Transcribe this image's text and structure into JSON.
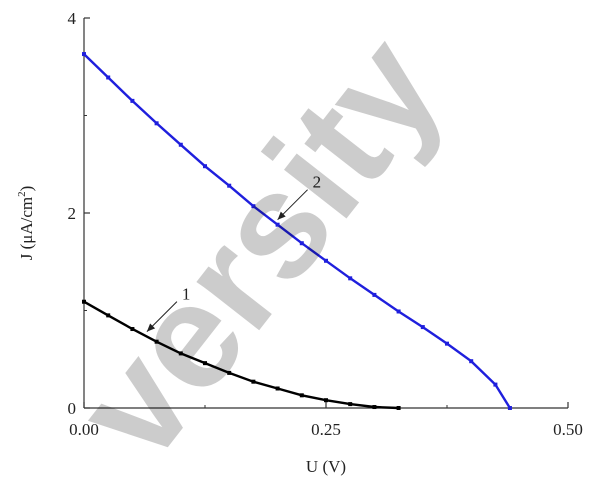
{
  "chart_data": {
    "type": "line",
    "xlabel": "U (V)",
    "ylabel": "J (μA/cm",
    "ylabel_sup": "2",
    "ylabel_close": ")",
    "xlim": [
      0,
      0.5
    ],
    "ylim": [
      0,
      4
    ],
    "x_ticks": [
      0,
      0.25,
      0.5
    ],
    "x_tick_labels": [
      "0.00",
      "0.25",
      "0.50"
    ],
    "y_ticks": [
      0,
      2,
      4
    ],
    "y_tick_labels": [
      "0",
      "2",
      "4"
    ],
    "grid": false,
    "series": [
      {
        "name": "1",
        "color": "#000000",
        "x": [
          0,
          0.025,
          0.05,
          0.075,
          0.1,
          0.125,
          0.15,
          0.175,
          0.2,
          0.225,
          0.25,
          0.275,
          0.3,
          0.325
        ],
        "y": [
          1.09,
          0.95,
          0.81,
          0.68,
          0.56,
          0.46,
          0.36,
          0.27,
          0.2,
          0.13,
          0.08,
          0.04,
          0.01,
          0
        ]
      },
      {
        "name": "2",
        "color": "#1f1fdd",
        "x": [
          0,
          0.025,
          0.05,
          0.075,
          0.1,
          0.125,
          0.15,
          0.175,
          0.2,
          0.225,
          0.25,
          0.275,
          0.3,
          0.325,
          0.35,
          0.375,
          0.4,
          0.425,
          0.44
        ],
        "y": [
          3.63,
          3.39,
          3.15,
          2.92,
          2.7,
          2.48,
          2.28,
          2.07,
          1.88,
          1.69,
          1.51,
          1.33,
          1.16,
          0.99,
          0.83,
          0.66,
          0.48,
          0.24,
          0
        ]
      }
    ],
    "annotations": [
      {
        "label": "1",
        "series": 0,
        "x": 0.065
      },
      {
        "label": "2",
        "series": 1,
        "x": 0.2
      }
    ]
  },
  "watermark": {
    "text": "versity"
  }
}
